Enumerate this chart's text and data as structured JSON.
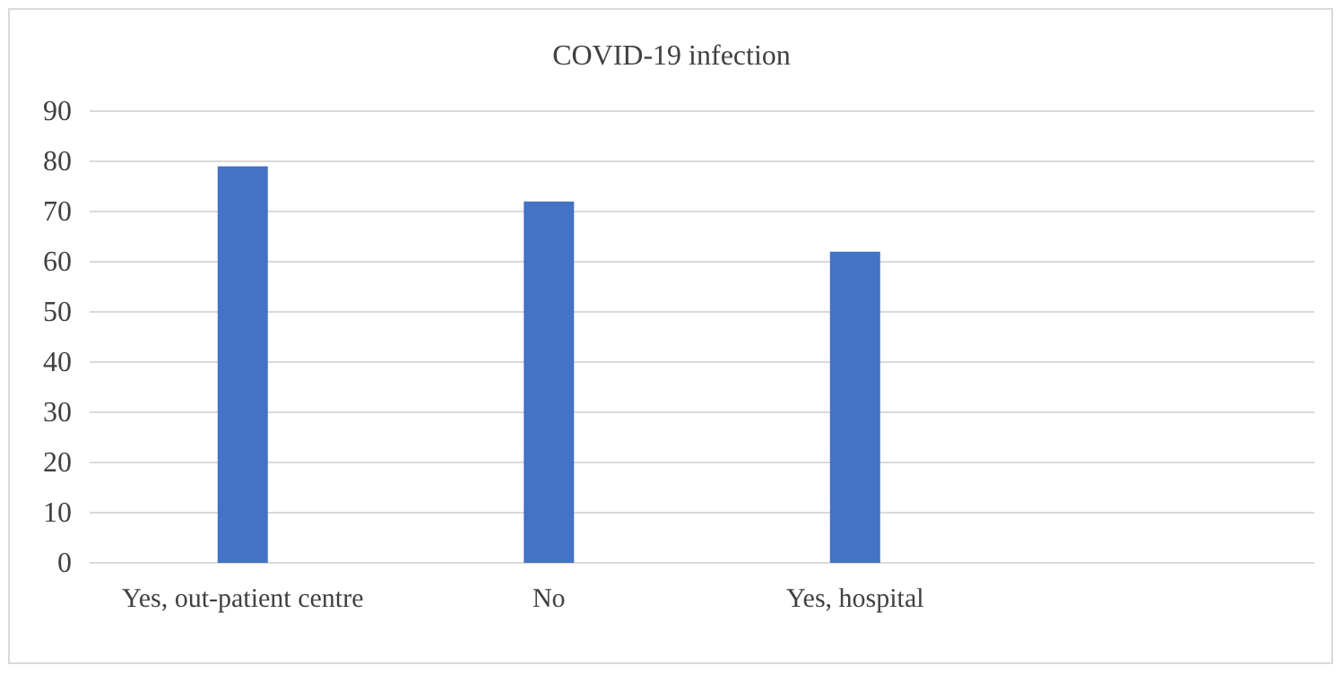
{
  "chart_data": {
    "type": "bar",
    "title": "COVID-19 infection",
    "categories": [
      "Yes, out-patient centre",
      "No",
      "Yes, hospital",
      null
    ],
    "values": [
      79,
      72,
      62,
      null
    ],
    "color": "#4472c4",
    "ylim": [
      0,
      90
    ],
    "yticks": [
      0,
      10,
      20,
      30,
      40,
      50,
      60,
      70,
      80,
      90
    ],
    "grid": "y"
  }
}
